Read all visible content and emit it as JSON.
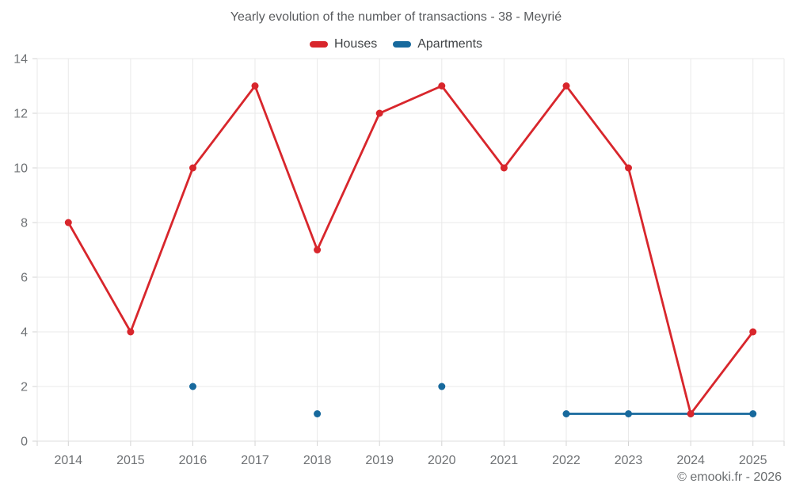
{
  "chart_data": {
    "type": "line",
    "title": "Yearly evolution of the number of transactions - 38 - Meyrié",
    "categories": [
      "2014",
      "2015",
      "2016",
      "2017",
      "2018",
      "2019",
      "2020",
      "2021",
      "2022",
      "2023",
      "2024",
      "2025"
    ],
    "series": [
      {
        "name": "Houses",
        "color": "#d8262c",
        "values": [
          8,
          4,
          10,
          13,
          7,
          12,
          13,
          10,
          13,
          10,
          1,
          4
        ]
      },
      {
        "name": "Apartments",
        "color": "#17699d",
        "values": [
          null,
          null,
          2,
          null,
          1,
          null,
          2,
          null,
          1,
          1,
          1,
          1
        ]
      }
    ],
    "xlabel": "",
    "ylabel": "",
    "ylim": [
      0,
      14
    ],
    "yticks": [
      0,
      2,
      4,
      6,
      8,
      10,
      12,
      14
    ],
    "grid": true,
    "legend_position": "top",
    "marker_radius": 4.5,
    "line_width": 2.8,
    "grid_color": "#e9e9e9",
    "axis_line_color": "#dcdcdc",
    "tick_color": "#d3d3d3"
  },
  "footer": {
    "copyright": "© emooki.fr - 2026"
  }
}
